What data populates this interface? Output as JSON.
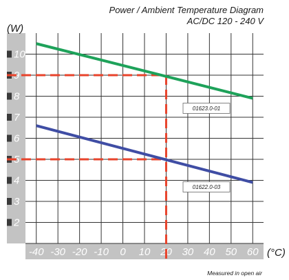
{
  "chart_data": {
    "type": "line",
    "title": "Power / Ambient Temperature Diagram",
    "subtitle": "AC/DC 120 - 240 V",
    "ylabel": "(W)",
    "xlabel": "(°C)",
    "xlim": [
      -45,
      65
    ],
    "ylim": [
      1,
      11
    ],
    "x_ticks": [
      "-40",
      "-30",
      "-20",
      "-10",
      "0",
      "10",
      "20",
      "30",
      "40",
      "50",
      "60"
    ],
    "y_ticks": [
      "2",
      "3",
      "4",
      "5",
      "6",
      "7",
      "8",
      "9",
      "10"
    ],
    "grid": true,
    "series": [
      {
        "name": "01623.0-01",
        "color": "#1ea25a",
        "x": [
          -40,
          60
        ],
        "y": [
          10.5,
          7.9
        ]
      },
      {
        "name": "01622.0-03",
        "color": "#3f4da4",
        "x": [
          -40,
          60
        ],
        "y": [
          6.6,
          3.9
        ]
      }
    ],
    "reference_lines": {
      "color": "#e8432b",
      "x": 20,
      "y_values": [
        9,
        5
      ]
    },
    "note": "Measured in open air"
  }
}
